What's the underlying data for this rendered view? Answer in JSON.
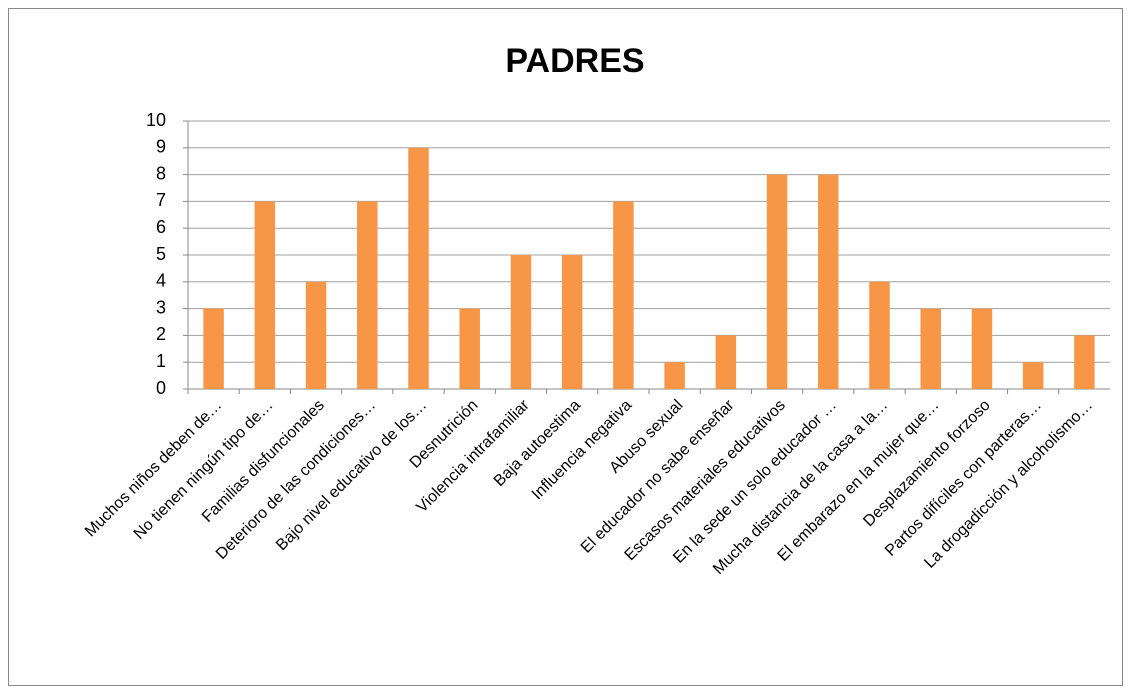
{
  "chart_data": {
    "type": "bar",
    "title": "PADRES",
    "categories": [
      "Muchos niños deben de…",
      "No tienen ningún tipo de…",
      "Familias disfuncionales",
      "Deterioro de las condiciones…",
      "Bajo nivel educativo de los…",
      "Desnutrición",
      "Violencia intrafamiliar",
      "Baja autoestima",
      "Influencia negativa",
      "Abuso sexual",
      "El educador no sabe enseñar",
      "Escasos materiales educativos",
      "En la sede un solo educador …",
      "Mucha distancia de la casa a la…",
      "El embarazo en la mujer que…",
      "Desplazamiento forzoso",
      "Partos difíciles con parteras…",
      "La drogadicción y alcoholismo…"
    ],
    "values": [
      3,
      7,
      4,
      7,
      9,
      3,
      5,
      5,
      7,
      1,
      2,
      8,
      8,
      4,
      3,
      3,
      1,
      2
    ],
    "color": "#f79646",
    "ylim": [
      0,
      10
    ],
    "yticks": [
      0,
      1,
      2,
      3,
      4,
      5,
      6,
      7,
      8,
      9,
      10
    ],
    "grid": true
  }
}
